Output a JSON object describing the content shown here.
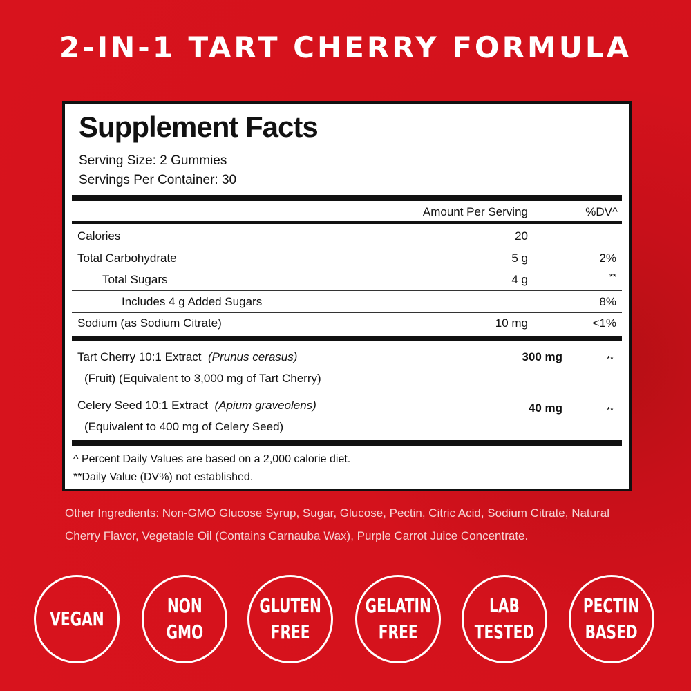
{
  "headline": "2-IN-1 TART CHERRY FORMULA",
  "label": {
    "title": "Supplement Facts",
    "serving_size": "Serving Size: 2 Gummies",
    "servings_per_container": "Servings Per Container: 30",
    "col_amount": "Amount Per Serving",
    "col_dv": "%DV^",
    "rows": [
      {
        "name": "Calories",
        "amount": "20",
        "dv": ""
      },
      {
        "name": "Total Carbohydrate",
        "amount": "5 g",
        "dv": "2%"
      },
      {
        "name": "Total Sugars",
        "amount": "4 g",
        "dv": "**"
      },
      {
        "name": "Includes 4 g Added Sugars",
        "amount": "",
        "dv": "8%"
      },
      {
        "name": "Sodium (as Sodium Citrate)",
        "amount": "10 mg",
        "dv": "<1%"
      }
    ],
    "extracts": [
      {
        "name": "Tart Cherry 10:1 Extract",
        "latin": "(Prunus cerasus)",
        "detail": "(Fruit) (Equivalent to 3,000 mg of Tart Cherry)",
        "amount": "300 mg",
        "dv": "**"
      },
      {
        "name": "Celery Seed 10:1 Extract",
        "latin": "(Apium graveolens)",
        "detail": "(Equivalent to 400 mg of Celery Seed)",
        "amount": "40 mg",
        "dv": "**"
      }
    ],
    "footnote1": "^ Percent Daily Values are based on a 2,000 calorie diet.",
    "footnote2": "**Daily Value (DV%) not established."
  },
  "other_ingredients": "Other Ingredients: Non-GMO Glucose Syrup, Sugar, Glucose, Pectin, Citric Acid, Sodium Citrate, Natural Cherry Flavor, Vegetable Oil (Contains Carnauba Wax), Purple Carrot Juice Concentrate.",
  "badges": [
    {
      "line1": "VEGAN",
      "line2": ""
    },
    {
      "line1": "NON",
      "line2": "GMO"
    },
    {
      "line1": "GLUTEN",
      "line2": "FREE"
    },
    {
      "line1": "GELATIN",
      "line2": "FREE"
    },
    {
      "line1": "LAB",
      "line2": "TESTED"
    },
    {
      "line1": "PECTIN",
      "line2": "BASED"
    }
  ],
  "colors": {
    "background": "#d4121c",
    "label_border": "#111111",
    "text_light": "#f6d4d4"
  }
}
